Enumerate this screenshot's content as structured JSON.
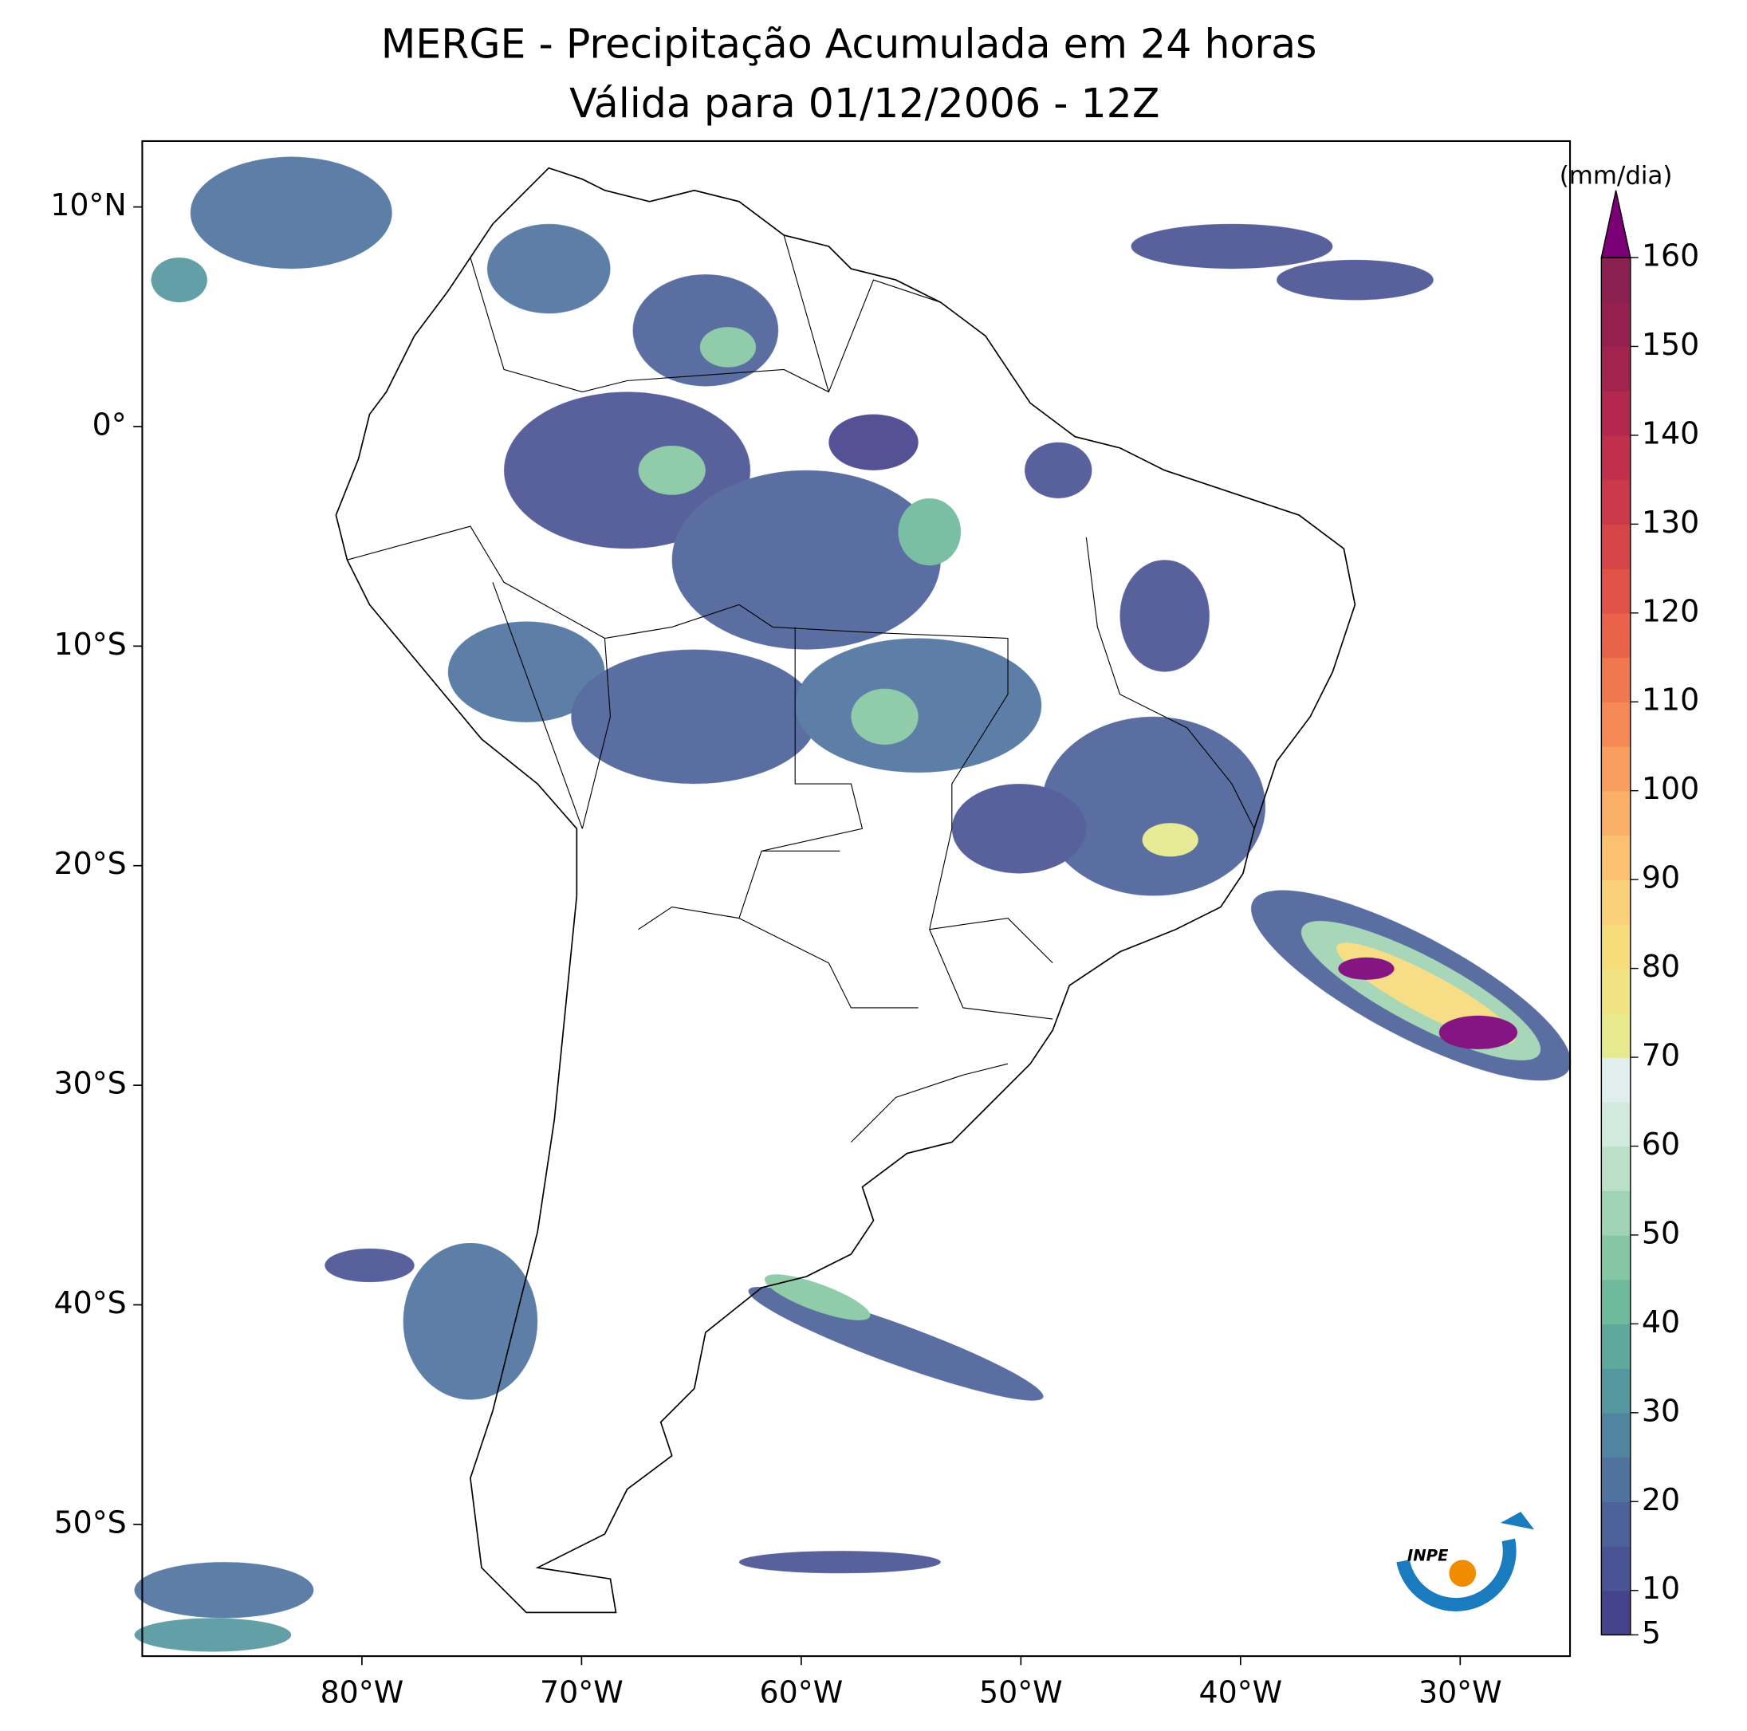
{
  "chart_data": {
    "type": "map",
    "title": "MERGE - Precipitação Acumulada em 24 horas",
    "subtitle": "Válida para 01/12/2006 - 12Z",
    "xlim": [
      -90,
      -25
    ],
    "ylim": [
      -56,
      13
    ],
    "xticks": [
      {
        "value": -80,
        "label": "80°W"
      },
      {
        "value": -70,
        "label": "70°W"
      },
      {
        "value": -60,
        "label": "60°W"
      },
      {
        "value": -50,
        "label": "50°W"
      },
      {
        "value": -40,
        "label": "40°W"
      },
      {
        "value": -30,
        "label": "30°W"
      }
    ],
    "yticks": [
      {
        "value": 10,
        "label": "10°N"
      },
      {
        "value": 0,
        "label": "0°"
      },
      {
        "value": -10,
        "label": "10°S"
      },
      {
        "value": -20,
        "label": "20°S"
      },
      {
        "value": -30,
        "label": "30°S"
      },
      {
        "value": -40,
        "label": "40°S"
      },
      {
        "value": -50,
        "label": "50°S"
      }
    ],
    "colorbar": {
      "label": "(mm/dia)",
      "lim": [
        5,
        160
      ],
      "ticks": [
        5,
        10,
        20,
        30,
        40,
        50,
        60,
        70,
        80,
        90,
        100,
        110,
        120,
        130,
        140,
        150,
        160
      ],
      "colors": [
        "#45438c",
        "#4a5393",
        "#4d6299",
        "#4f739e",
        "#51859f",
        "#55979e",
        "#5ea99c",
        "#6fb99c",
        "#86c7a3",
        "#a0d3b3",
        "#bbe0c8",
        "#d1eadd",
        "#e1eeee",
        "#e6ea8c",
        "#f0e482",
        "#f7dc7c",
        "#fad07a",
        "#fbc171",
        "#fab068",
        "#f89e5e",
        "#f58a56",
        "#f1774e",
        "#e9624a",
        "#e05148",
        "#d64548",
        "#cc3a4a",
        "#c0304c",
        "#b2284e",
        "#a3234f",
        "#95204f",
        "#89204f"
      ],
      "extend_color": "#7b0077"
    },
    "logo_text": "INPE"
  }
}
